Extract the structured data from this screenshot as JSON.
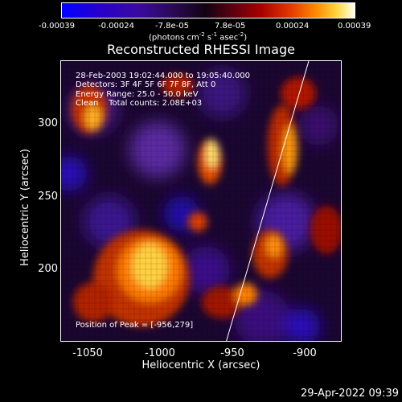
{
  "colorbar": {
    "ticks": [
      "-0.00039",
      "-0.00024",
      "-7.8e-05",
      "7.8e-05",
      "0.00024",
      "0.00039"
    ],
    "units_prefix": "(photons cm",
    "units_sup1": "-2",
    "units_mid": " s",
    "units_sup2": "-1",
    "units_mid2": " asec",
    "units_sup3": "-2",
    "units_suffix": ")"
  },
  "title": "Reconstructed RHESSI Image",
  "annotations": {
    "time_range": "28-Feb-2003 19:02:44.000 to 19:05:40.000",
    "detectors": "Detectors: 3F 4F 5F 6F 7F 8F, Att 0",
    "energy": "Energy Range: 25.0 - 50.0 keV",
    "method": "Clean    Total counts: 2.08E+03",
    "peak": "Position of Peak = [-956,279]"
  },
  "axes": {
    "xlabel": "Heliocentric X (arcsec)",
    "ylabel": "Heliocentric Y (arcsec)",
    "xticks": [
      "-1050",
      "-1000",
      "-950",
      "-900"
    ],
    "yticks": [
      "300",
      "250",
      "200"
    ]
  },
  "footer_date": "29-Apr-2022 09:39"
}
